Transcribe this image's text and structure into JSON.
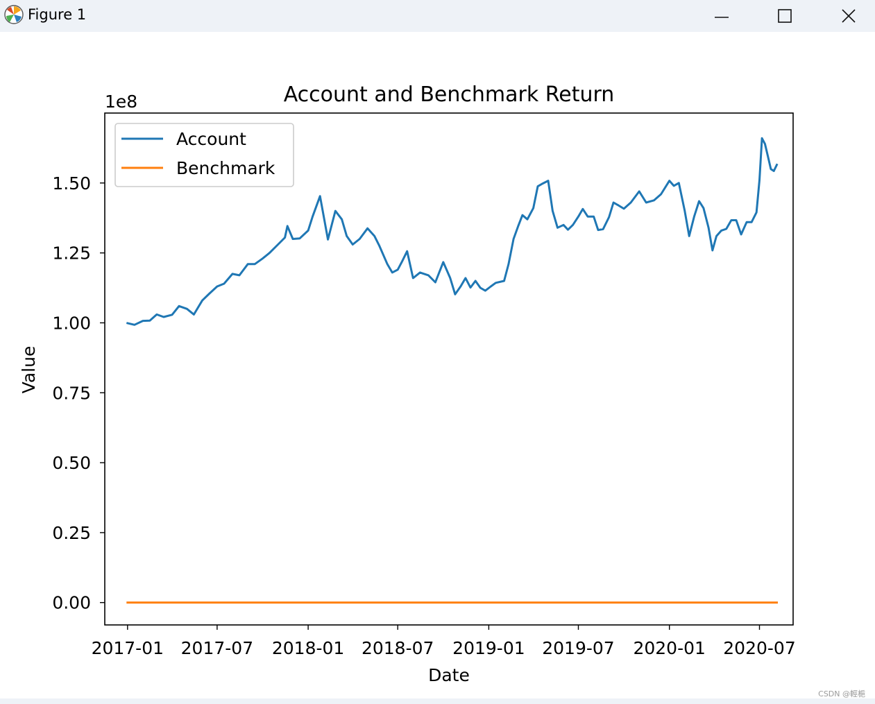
{
  "window": {
    "title": "Figure 1",
    "app_icon": "matplotlib-logo-icon",
    "controls": {
      "minimize_icon": "minimize-icon",
      "maximize_icon": "maximize-icon",
      "close_icon": "close-icon"
    }
  },
  "watermark": "CSDN @輕梔",
  "chart_data": {
    "type": "line",
    "title": "Account and Benchmark Return",
    "xlabel": "Date",
    "ylabel": "Value",
    "y_offset_label": "1e8",
    "y_scale": 100000000,
    "xlim": [
      "2016-11-16",
      "2020-09-07"
    ],
    "ylim": [
      -8000000,
      175000000
    ],
    "x_ticks": [
      "2017-01",
      "2017-07",
      "2018-01",
      "2018-07",
      "2019-01",
      "2019-07",
      "2020-01",
      "2020-07"
    ],
    "x_tick_dates": [
      "2017-01-01",
      "2017-07-01",
      "2018-01-01",
      "2018-07-01",
      "2019-01-01",
      "2019-07-01",
      "2020-01-01",
      "2020-07-01"
    ],
    "y_ticks": [
      0,
      25000000,
      50000000,
      75000000,
      100000000,
      125000000,
      150000000
    ],
    "y_tick_labels": [
      "0.00",
      "0.25",
      "0.50",
      "0.75",
      "1.00",
      "1.25",
      "1.50"
    ],
    "grid": false,
    "legend_position": "upper-left",
    "series": [
      {
        "name": "Account",
        "color": "#1f77b4",
        "points": [
          [
            "2017-01-01",
            99900000
          ],
          [
            "2017-01-15",
            99300000
          ],
          [
            "2017-02-01",
            100700000
          ],
          [
            "2017-02-15",
            100800000
          ],
          [
            "2017-03-01",
            103000000
          ],
          [
            "2017-03-15",
            102100000
          ],
          [
            "2017-04-01",
            102900000
          ],
          [
            "2017-04-15",
            106000000
          ],
          [
            "2017-05-01",
            105000000
          ],
          [
            "2017-05-15",
            103000000
          ],
          [
            "2017-06-01",
            108000000
          ],
          [
            "2017-06-15",
            110400000
          ],
          [
            "2017-07-01",
            113000000
          ],
          [
            "2017-07-15",
            114000000
          ],
          [
            "2017-08-01",
            117500000
          ],
          [
            "2017-08-15",
            117000000
          ],
          [
            "2017-09-01",
            121000000
          ],
          [
            "2017-09-15",
            121000000
          ],
          [
            "2017-10-01",
            123000000
          ],
          [
            "2017-10-15",
            125000000
          ],
          [
            "2017-11-01",
            128000000
          ],
          [
            "2017-11-15",
            130500000
          ],
          [
            "2017-11-20",
            134600000
          ],
          [
            "2017-12-01",
            130000000
          ],
          [
            "2017-12-15",
            130200000
          ],
          [
            "2018-01-01",
            133000000
          ],
          [
            "2018-01-10",
            138000000
          ],
          [
            "2018-01-25",
            145300000
          ],
          [
            "2018-02-10",
            129800000
          ],
          [
            "2018-02-25",
            140000000
          ],
          [
            "2018-03-10",
            137000000
          ],
          [
            "2018-03-20",
            131000000
          ],
          [
            "2018-04-01",
            128000000
          ],
          [
            "2018-04-15",
            130000000
          ],
          [
            "2018-05-01",
            133800000
          ],
          [
            "2018-05-15",
            131000000
          ],
          [
            "2018-05-25",
            127500000
          ],
          [
            "2018-06-10",
            121000000
          ],
          [
            "2018-06-20",
            118000000
          ],
          [
            "2018-07-01",
            119000000
          ],
          [
            "2018-07-10",
            122000000
          ],
          [
            "2018-07-20",
            125600000
          ],
          [
            "2018-08-01",
            116000000
          ],
          [
            "2018-08-15",
            118000000
          ],
          [
            "2018-09-01",
            117000000
          ],
          [
            "2018-09-15",
            114500000
          ],
          [
            "2018-10-01",
            121700000
          ],
          [
            "2018-10-15",
            116000000
          ],
          [
            "2018-10-25",
            110200000
          ],
          [
            "2018-11-05",
            113000000
          ],
          [
            "2018-11-15",
            116000000
          ],
          [
            "2018-11-25",
            112600000
          ],
          [
            "2018-12-05",
            115000000
          ],
          [
            "2018-12-15",
            112500000
          ],
          [
            "2018-12-25",
            111500000
          ],
          [
            "2019-01-05",
            113000000
          ],
          [
            "2019-01-15",
            114300000
          ],
          [
            "2019-02-01",
            115000000
          ],
          [
            "2019-02-10",
            121000000
          ],
          [
            "2019-02-20",
            130000000
          ],
          [
            "2019-03-01",
            134400000
          ],
          [
            "2019-03-10",
            138500000
          ],
          [
            "2019-03-20",
            137000000
          ],
          [
            "2019-04-01",
            141000000
          ],
          [
            "2019-04-10",
            148800000
          ],
          [
            "2019-04-20",
            149800000
          ],
          [
            "2019-05-01",
            150800000
          ],
          [
            "2019-05-10",
            140000000
          ],
          [
            "2019-05-20",
            134000000
          ],
          [
            "2019-06-01",
            135000000
          ],
          [
            "2019-06-10",
            133300000
          ],
          [
            "2019-06-20",
            135000000
          ],
          [
            "2019-07-01",
            138000000
          ],
          [
            "2019-07-10",
            140700000
          ],
          [
            "2019-07-20",
            138000000
          ],
          [
            "2019-08-01",
            138000000
          ],
          [
            "2019-08-10",
            133200000
          ],
          [
            "2019-08-20",
            133500000
          ],
          [
            "2019-09-01",
            137800000
          ],
          [
            "2019-09-10",
            143000000
          ],
          [
            "2019-09-20",
            142000000
          ],
          [
            "2019-10-01",
            140800000
          ],
          [
            "2019-10-15",
            143000000
          ],
          [
            "2019-11-01",
            147000000
          ],
          [
            "2019-11-15",
            143000000
          ],
          [
            "2019-12-01",
            143800000
          ],
          [
            "2019-12-15",
            146000000
          ],
          [
            "2020-01-01",
            150800000
          ],
          [
            "2020-01-10",
            149000000
          ],
          [
            "2020-01-20",
            150000000
          ],
          [
            "2020-02-01",
            140000000
          ],
          [
            "2020-02-10",
            131000000
          ],
          [
            "2020-02-20",
            138000000
          ],
          [
            "2020-03-01",
            143500000
          ],
          [
            "2020-03-10",
            141000000
          ],
          [
            "2020-03-20",
            134000000
          ],
          [
            "2020-03-28",
            125900000
          ],
          [
            "2020-04-05",
            131000000
          ],
          [
            "2020-04-15",
            133000000
          ],
          [
            "2020-04-25",
            133600000
          ],
          [
            "2020-05-05",
            136700000
          ],
          [
            "2020-05-15",
            136700000
          ],
          [
            "2020-05-25",
            131600000
          ],
          [
            "2020-06-05",
            136000000
          ],
          [
            "2020-06-15",
            136000000
          ],
          [
            "2020-06-25",
            139500000
          ],
          [
            "2020-07-01",
            151000000
          ],
          [
            "2020-07-06",
            166000000
          ],
          [
            "2020-07-12",
            164000000
          ],
          [
            "2020-07-18",
            159600000
          ],
          [
            "2020-07-24",
            155000000
          ],
          [
            "2020-07-30",
            154300000
          ],
          [
            "2020-08-05",
            156500000
          ]
        ]
      },
      {
        "name": "Benchmark",
        "color": "#ff7f0e",
        "points": [
          [
            "2017-01-01",
            0
          ],
          [
            "2020-08-05",
            0
          ]
        ]
      }
    ]
  }
}
